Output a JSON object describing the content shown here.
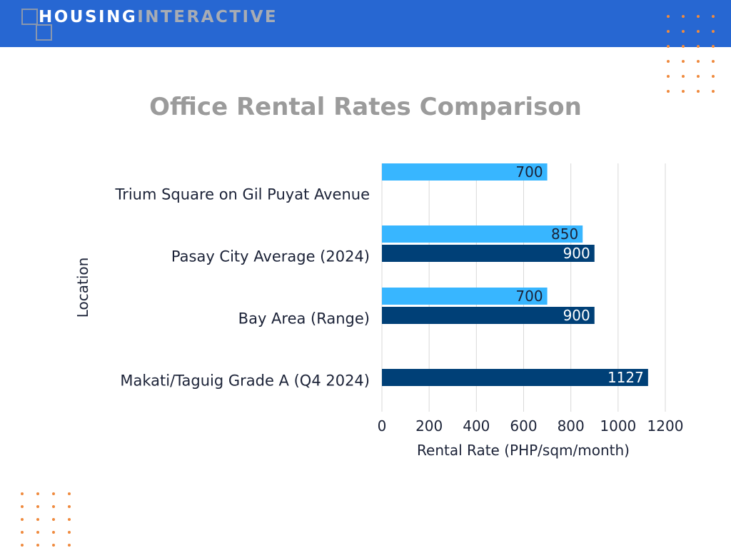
{
  "header": {
    "brand_primary": "HOUSING",
    "brand_secondary": "INTERACTIVE"
  },
  "chart_data": {
    "type": "bar",
    "orientation": "horizontal",
    "title": "Office Rental Rates Comparison",
    "xlabel": "Rental Rate (PHP/sqm/month)",
    "ylabel": "Location",
    "categories": [
      "Trium Square on Gil Puyat Avenue",
      "Pasay City Average (2024)",
      "Bay Area (Range)",
      "Makati/Taguig Grade A (Q4 2024)"
    ],
    "series": [
      {
        "color": "#38b6ff",
        "label_color": "#1b2237",
        "values": [
          700,
          850,
          700,
          null
        ]
      },
      {
        "color": "#004077",
        "label_color": "#ffffff",
        "values": [
          null,
          900,
          900,
          1127
        ]
      }
    ],
    "xlim": [
      0,
      1200
    ],
    "xticks": [
      0,
      200,
      400,
      600,
      800,
      1000,
      1200
    ],
    "grid": true,
    "legend": "none"
  },
  "colors": {
    "header": "#2767d2",
    "accent_dots": "#ef8a3e",
    "title": "#9b9b9b",
    "text": "#1b2237",
    "grid": "#d9d9d9"
  }
}
